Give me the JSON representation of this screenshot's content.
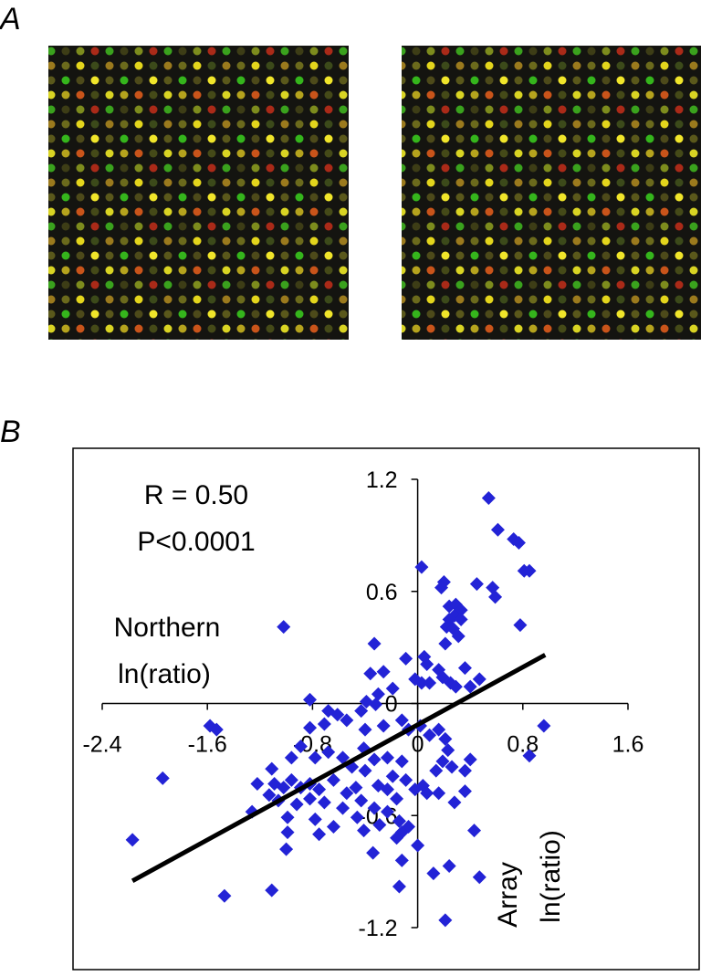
{
  "panel_labels": [
    "A",
    "B"
  ],
  "chart_data": {
    "type": "scatter",
    "annotations": [
      "R = 0.50",
      "P<0.0001"
    ],
    "xlabel": [
      "Northern",
      "ln(ratio)"
    ],
    "ylabel": [
      "Array",
      "ln(ratio)"
    ],
    "color": "#2323d6",
    "xlim": [
      -2.4,
      1.6
    ],
    "xticks": [
      -2.4,
      -1.6,
      -0.8,
      0,
      0.8,
      1.6
    ],
    "ylim": [
      -1.2,
      1.2
    ],
    "yticks": [
      -1.2,
      -0.6,
      0,
      0.6,
      1.2
    ],
    "x": [
      0.54,
      0.61,
      0.73,
      0.77,
      0.03,
      0.81,
      0.85,
      0.45,
      0.57,
      0.59,
      0.2,
      0.18,
      -1.02,
      0.78,
      0.24,
      0.29,
      0.33,
      0.28,
      0.24,
      0.33,
      0.22,
      0.27,
      0.31,
      -0.33,
      0.21,
      0.05,
      0.07,
      -0.09,
      -0.36,
      -0.26,
      0.16,
      0.36,
      -0.82,
      -0.02,
      0.03,
      0.09,
      0.19,
      0.25,
      0.29,
      0.4,
      0.47,
      -0.19,
      -0.3,
      -0.39,
      -0.32,
      -0.61,
      -0.54,
      -0.68,
      -0.43,
      -1.58,
      -1.53,
      -0.82,
      -0.71,
      -0.4,
      -0.26,
      -0.12,
      -0.07,
      0.02,
      0.09,
      0.16,
      0.21,
      0.96,
      0.85,
      0.4,
      0.36,
      0.23,
      0.19,
      0.26,
      0.14,
      -0.89,
      -0.96,
      -0.78,
      -0.68,
      -0.57,
      -0.5,
      -0.41,
      -0.33,
      -0.23,
      -0.12,
      -0.4,
      -1.94,
      -1.22,
      -1.11,
      -1.09,
      -1.02,
      -0.96,
      -0.89,
      -0.82,
      -0.75,
      -0.64,
      -0.54,
      -0.47,
      -0.3,
      -0.23,
      -0.19,
      -0.09,
      -0.02,
      0.04,
      0.07,
      0.28,
      0.16,
      0.36,
      -1.13,
      -1.06,
      -0.92,
      -0.82,
      -0.71,
      -0.57,
      -0.43,
      -0.33,
      -0.23,
      -0.16,
      -1.26,
      -0.99,
      -0.78,
      -0.64,
      -0.46,
      -0.41,
      -0.29,
      -0.14,
      -0.07,
      -0.99,
      -0.75,
      -0.12,
      -0.16,
      -2.17,
      -1.0,
      0.43,
      0.0,
      -0.34,
      -0.12,
      0.24,
      0.12,
      0.47,
      -0.14,
      -1.11,
      -1.47,
      0.21
    ],
    "values": [
      1.1,
      0.93,
      0.88,
      0.86,
      0.73,
      0.71,
      0.71,
      0.64,
      0.62,
      0.57,
      0.65,
      0.62,
      0.41,
      0.42,
      0.52,
      0.53,
      0.5,
      0.47,
      0.45,
      0.45,
      0.41,
      0.4,
      0.36,
      0.32,
      0.32,
      0.25,
      0.21,
      0.24,
      0.16,
      0.17,
      0.18,
      0.19,
      0.02,
      0.13,
      0.11,
      0.11,
      0.14,
      0.11,
      0.09,
      0.09,
      0.13,
      0.08,
      0.05,
      0.01,
      -0.005,
      -0.06,
      -0.09,
      -0.04,
      -0.04,
      -0.12,
      -0.14,
      -0.13,
      -0.11,
      -0.14,
      -0.12,
      -0.09,
      -0.14,
      -0.12,
      -0.17,
      -0.14,
      -0.19,
      -0.12,
      -0.28,
      -0.3,
      -0.36,
      -0.25,
      -0.31,
      -0.34,
      -0.36,
      -0.23,
      -0.29,
      -0.29,
      -0.26,
      -0.29,
      -0.34,
      -0.24,
      -0.3,
      -0.29,
      -0.31,
      -0.36,
      -0.4,
      -0.43,
      -0.35,
      -0.43,
      -0.45,
      -0.41,
      -0.45,
      -0.43,
      -0.46,
      -0.41,
      -0.48,
      -0.45,
      -0.44,
      -0.46,
      -0.39,
      -0.41,
      -0.46,
      -0.44,
      -0.48,
      -0.53,
      -0.48,
      -0.47,
      -0.49,
      -0.52,
      -0.54,
      -0.51,
      -0.53,
      -0.56,
      -0.52,
      -0.56,
      -0.58,
      -0.51,
      -0.58,
      -0.61,
      -0.62,
      -0.66,
      -0.61,
      -0.68,
      -0.65,
      -0.63,
      -0.66,
      -0.69,
      -0.7,
      -0.69,
      -0.72,
      -0.73,
      -0.78,
      -0.68,
      -0.76,
      -0.8,
      -0.84,
      -0.87,
      -0.91,
      -0.93,
      -0.98,
      -1.0,
      -1.03,
      -1.16
    ],
    "fit_line": {
      "x": [
        -2.17,
        0.97
      ],
      "y": [
        -0.95,
        0.26
      ],
      "color": "#000000"
    }
  }
}
